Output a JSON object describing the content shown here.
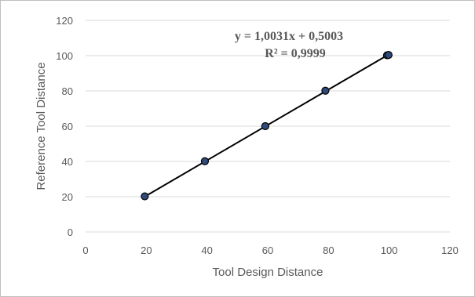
{
  "chart_data": {
    "type": "scatter",
    "xlabel": "Tool Design Distance",
    "ylabel": "Reference Tool Distance",
    "xlim": [
      0,
      120
    ],
    "ylim": [
      0,
      120
    ],
    "x_ticks": [
      0,
      20,
      40,
      60,
      80,
      100,
      120
    ],
    "y_ticks": [
      0,
      20,
      40,
      60,
      80,
      100,
      120
    ],
    "grid": "horizontal",
    "marker_color": "#2e4a7a",
    "line_color": "#000000",
    "points": [
      {
        "x": 19.5,
        "y": 20.2
      },
      {
        "x": 39.3,
        "y": 40.1
      },
      {
        "x": 59.2,
        "y": 60.0
      },
      {
        "x": 79.0,
        "y": 80.1
      },
      {
        "x": 99.3,
        "y": 100.2
      },
      {
        "x": 99.8,
        "y": 100.4
      }
    ],
    "trendline": {
      "slope": 1.0031,
      "intercept": 0.5003,
      "x_range": [
        19.5,
        99.8
      ]
    },
    "annotations": {
      "equation": "y = 1,0031x + 0,5003",
      "r_squared": "R² = 0,9999"
    }
  }
}
